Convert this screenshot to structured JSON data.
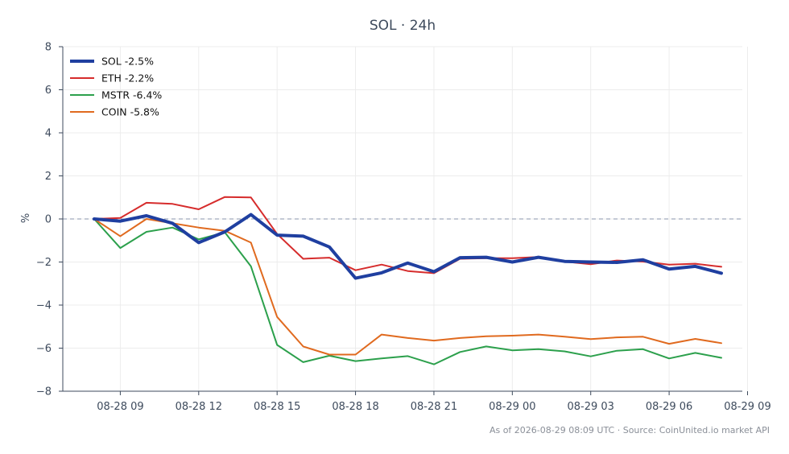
{
  "chart_data": {
    "type": "line",
    "title": "SOL · 24h",
    "xlabel": "",
    "ylabel": "%",
    "ylim": [
      -8,
      8
    ],
    "yticks": [
      -8,
      -6,
      -4,
      -2,
      0,
      2,
      4,
      6,
      8
    ],
    "x_range_hours": [
      -1.2,
      24.8
    ],
    "xticks": [
      {
        "hour": 1,
        "label": "08-28 09"
      },
      {
        "hour": 4,
        "label": "08-28 12"
      },
      {
        "hour": 7,
        "label": "08-28 15"
      },
      {
        "hour": 10,
        "label": "08-28 18"
      },
      {
        "hour": 13,
        "label": "08-28 21"
      },
      {
        "hour": 16,
        "label": "08-29 00"
      },
      {
        "hour": 19,
        "label": "08-29 03"
      },
      {
        "hour": 22,
        "label": "08-29 06"
      },
      {
        "hour": 25,
        "label": "08-29 09"
      }
    ],
    "x_hours": [
      0,
      1,
      2,
      3,
      4,
      5,
      6,
      7,
      8,
      9,
      10,
      11,
      12,
      13,
      14,
      15,
      16,
      17,
      18,
      19,
      20,
      21,
      22,
      23,
      24
    ],
    "baseline": 0,
    "grid": true,
    "legend_position": "top-left",
    "series": [
      {
        "name": "SOL -2.5%",
        "color": "#1f3fa0",
        "emphasis": true,
        "values": [
          0,
          -0.1,
          0.15,
          -0.2,
          -1.1,
          -0.6,
          0.2,
          -0.75,
          -0.8,
          -1.3,
          -2.75,
          -2.5,
          -2.05,
          -2.45,
          -1.8,
          -1.78,
          -2.0,
          -1.78,
          -1.97,
          -2.0,
          -2.02,
          -1.9,
          -2.33,
          -2.2,
          -2.52
        ]
      },
      {
        "name": "ETH -2.2%",
        "color": "#d62c2c",
        "emphasis": false,
        "values": [
          0,
          0.05,
          0.75,
          0.7,
          0.45,
          1.02,
          1.0,
          -0.7,
          -1.85,
          -1.8,
          -2.38,
          -2.12,
          -2.42,
          -2.52,
          -1.85,
          -1.82,
          -1.82,
          -1.77,
          -1.98,
          -2.1,
          -1.93,
          -1.98,
          -2.12,
          -2.08,
          -2.22
        ]
      },
      {
        "name": "MSTR -6.4%",
        "color": "#2ca04c",
        "emphasis": false,
        "values": [
          0,
          -1.35,
          -0.6,
          -0.4,
          -0.95,
          -0.62,
          -2.2,
          -5.85,
          -6.65,
          -6.35,
          -6.6,
          -6.48,
          -6.37,
          -6.75,
          -6.18,
          -5.92,
          -6.1,
          -6.05,
          -6.15,
          -6.38,
          -6.12,
          -6.05,
          -6.48,
          -6.22,
          -6.45
        ]
      },
      {
        "name": "COIN -5.8%",
        "color": "#e06a1f",
        "emphasis": false,
        "values": [
          0,
          -0.8,
          0,
          -0.2,
          -0.4,
          -0.55,
          -1.1,
          -4.55,
          -5.92,
          -6.3,
          -6.3,
          -5.37,
          -5.53,
          -5.65,
          -5.53,
          -5.45,
          -5.42,
          -5.37,
          -5.47,
          -5.58,
          -5.5,
          -5.47,
          -5.8,
          -5.57,
          -5.77
        ]
      }
    ]
  },
  "footer": "As of 2026-08-29 08:09 UTC · Source: CoinUnited.io market API"
}
